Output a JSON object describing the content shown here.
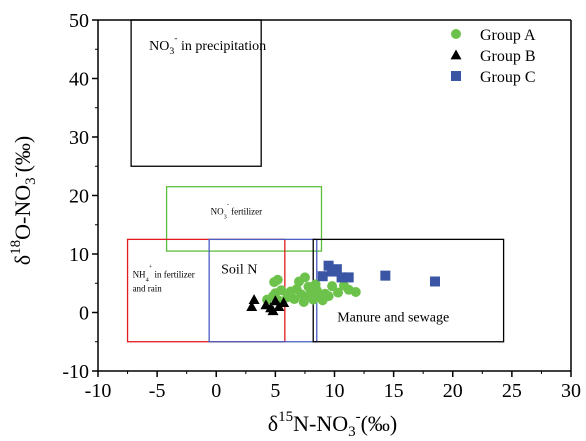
{
  "chart_data": {
    "type": "scatter",
    "xlabel": {
      "main": "δ",
      "sup": "15",
      "mid": "N-NO",
      "sub": "3",
      "sup2": "-",
      "unit": "(‰)"
    },
    "ylabel": {
      "main": "δ",
      "sup": "18",
      "mid": "O-NO",
      "sub": "3",
      "sup2": "-",
      "unit": "(‰)"
    },
    "xlim": [
      -10,
      30
    ],
    "ylim": [
      -10,
      50
    ],
    "x_ticks": [
      -10,
      -5,
      0,
      5,
      10,
      15,
      20,
      25,
      30
    ],
    "y_ticks": [
      -10,
      0,
      10,
      20,
      30,
      40,
      50
    ],
    "legend_position": "top-right",
    "series": [
      {
        "name": "Group A",
        "marker": "circle",
        "color": "#6cc24a",
        "points": [
          [
            4.3,
            2.2
          ],
          [
            4.8,
            2.8
          ],
          [
            5.0,
            3.3
          ],
          [
            5.3,
            2.0
          ],
          [
            5.5,
            3.8
          ],
          [
            4.9,
            5.2
          ],
          [
            5.2,
            5.6
          ],
          [
            6.0,
            2.6
          ],
          [
            6.3,
            3.6
          ],
          [
            6.6,
            2.3
          ],
          [
            6.8,
            4.0
          ],
          [
            7.0,
            5.3
          ],
          [
            7.2,
            3.1
          ],
          [
            7.4,
            1.8
          ],
          [
            7.6,
            2.7
          ],
          [
            7.8,
            4.4
          ],
          [
            8.0,
            3.4
          ],
          [
            8.2,
            2.2
          ],
          [
            8.4,
            4.8
          ],
          [
            8.5,
            3.8
          ],
          [
            8.8,
            2.6
          ],
          [
            9.0,
            2.1
          ],
          [
            9.2,
            3.2
          ],
          [
            9.5,
            2.8
          ],
          [
            9.8,
            4.5
          ],
          [
            10.3,
            3.4
          ],
          [
            10.8,
            4.6
          ],
          [
            11.2,
            3.9
          ],
          [
            11.8,
            3.5
          ],
          [
            7.5,
            6.0
          ]
        ]
      },
      {
        "name": "Group B",
        "marker": "triangle",
        "color": "#000000",
        "points": [
          [
            3.0,
            1.0
          ],
          [
            3.2,
            2.2
          ],
          [
            4.2,
            1.3
          ],
          [
            4.6,
            0.8
          ],
          [
            4.8,
            0.3
          ],
          [
            5.0,
            2.0
          ],
          [
            5.3,
            1.0
          ],
          [
            5.7,
            1.7
          ]
        ]
      },
      {
        "name": "Group C",
        "marker": "square",
        "color": "#3a55a4",
        "points": [
          [
            9.0,
            6.2
          ],
          [
            9.5,
            8.0
          ],
          [
            9.8,
            7.0
          ],
          [
            10.2,
            7.4
          ],
          [
            10.6,
            6.0
          ],
          [
            11.2,
            6.0
          ],
          [
            14.3,
            6.3
          ],
          [
            18.5,
            5.3
          ]
        ]
      }
    ],
    "regions": [
      {
        "label": "NO",
        "sub": "3",
        "sup": "-",
        "suffix": " in precipitation",
        "x": [
          -7.2,
          3.8
        ],
        "y": [
          25,
          50
        ],
        "color": "#000000"
      },
      {
        "label": "NO",
        "sub": "3",
        "sup": "-",
        "suffix": " fertilizer",
        "x": [
          -4.2,
          8.9
        ],
        "y": [
          10.5,
          21.5
        ],
        "color": "#5cbf3c"
      },
      {
        "label": "NH",
        "sub": "4",
        "sup": "+",
        "suffix": " in fertilizer",
        "line2": "and rain",
        "x": [
          -7.5,
          5.8
        ],
        "y": [
          -5,
          12.5
        ],
        "color": "#e41a1c"
      },
      {
        "label": "Soil N",
        "x": [
          -0.6,
          8.5
        ],
        "y": [
          -5,
          12.5
        ],
        "color": "#4a5fc1"
      },
      {
        "label": "Manure and sewage",
        "x": [
          8.2,
          24.3
        ],
        "y": [
          -5,
          12.5
        ],
        "color": "#000000"
      }
    ]
  }
}
